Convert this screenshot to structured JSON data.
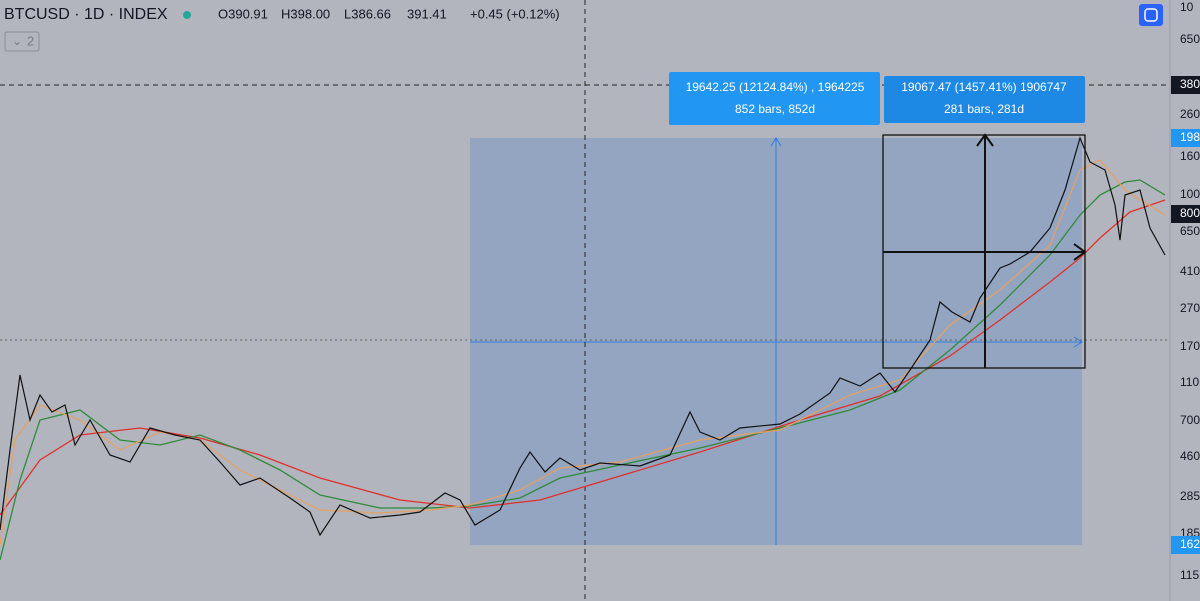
{
  "header": {
    "symbol": "BTCUSD · 1D · INDEX",
    "ohlc": [
      "O390.91",
      "H398.00",
      "L386.66",
      "391.41",
      "+0.45 (+0.12%)"
    ],
    "indicator_count": "2"
  },
  "measures": [
    {
      "line1": "19642.25 (12124.84%) , 1964225",
      "line2": "852 bars, 852d"
    },
    {
      "line1": "19067.47 (1457.41%) 1906747",
      "line2": "281 bars, 281d"
    }
  ],
  "price_axis": [
    "10",
    "650",
    "380",
    "260",
    "198",
    "160",
    "100",
    "800",
    "650",
    "410",
    "270",
    "170",
    "110",
    "700",
    "460",
    "285",
    "185",
    "162",
    "115"
  ]
}
